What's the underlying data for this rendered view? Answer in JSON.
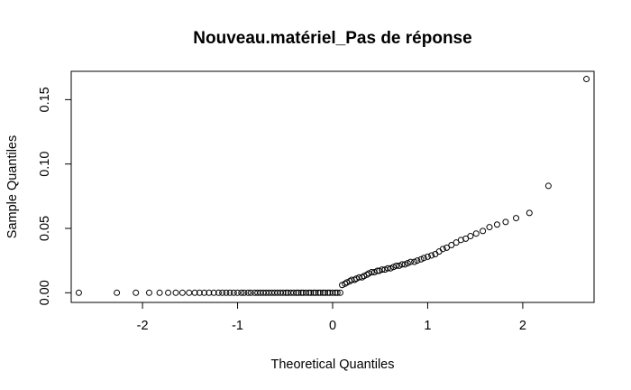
{
  "chart_data": {
    "type": "scatter",
    "title": "Nouveau.matériel_Pas de réponse",
    "xlabel": "Theoretical Quantiles",
    "ylabel": "Sample Quantiles",
    "xlim": [
      -2.75,
      2.75
    ],
    "ylim": [
      -0.0075,
      0.172
    ],
    "x_ticks": [
      -2,
      -1,
      0,
      1,
      2
    ],
    "x_tick_labels": [
      "-2",
      "-1",
      "0",
      "1",
      "2"
    ],
    "y_ticks": [
      0,
      0.05,
      0.1,
      0.15
    ],
    "y_tick_labels": [
      "0.00",
      "0.05",
      "0.10",
      "0.15"
    ],
    "grid": false,
    "series": [
      {
        "points": [
          [
            -2.67,
            0.0
          ],
          [
            -2.27,
            0.0
          ],
          [
            -2.07,
            0.0
          ],
          [
            -1.93,
            0.0
          ],
          [
            -1.82,
            0.0
          ],
          [
            -1.73,
            0.0
          ],
          [
            -1.65,
            0.0
          ],
          [
            -1.58,
            0.0
          ],
          [
            -1.51,
            0.0
          ],
          [
            -1.45,
            0.0
          ],
          [
            -1.4,
            0.0
          ],
          [
            -1.35,
            0.0
          ],
          [
            -1.3,
            0.0
          ],
          [
            -1.25,
            0.0
          ],
          [
            -1.2,
            0.0
          ],
          [
            -1.16,
            0.0
          ],
          [
            -1.12,
            0.0
          ],
          [
            -1.08,
            0.0
          ],
          [
            -1.04,
            0.0
          ],
          [
            -1.0,
            0.0
          ],
          [
            -0.96,
            0.0
          ],
          [
            -0.93,
            0.0
          ],
          [
            -0.89,
            0.0
          ],
          [
            -0.86,
            0.0
          ],
          [
            -0.82,
            0.0
          ],
          [
            -0.79,
            0.0
          ],
          [
            -0.76,
            0.0
          ],
          [
            -0.73,
            0.0
          ],
          [
            -0.7,
            0.0
          ],
          [
            -0.67,
            0.0
          ],
          [
            -0.64,
            0.0
          ],
          [
            -0.61,
            0.0
          ],
          [
            -0.58,
            0.0
          ],
          [
            -0.55,
            0.0
          ],
          [
            -0.52,
            0.0
          ],
          [
            -0.49,
            0.0
          ],
          [
            -0.47,
            0.0
          ],
          [
            -0.44,
            0.0
          ],
          [
            -0.41,
            0.0
          ],
          [
            -0.38,
            0.0
          ],
          [
            -0.36,
            0.0
          ],
          [
            -0.33,
            0.0
          ],
          [
            -0.31,
            0.0
          ],
          [
            -0.28,
            0.0
          ],
          [
            -0.25,
            0.0
          ],
          [
            -0.23,
            0.0
          ],
          [
            -0.2,
            0.0
          ],
          [
            -0.18,
            0.0
          ],
          [
            -0.15,
            0.0
          ],
          [
            -0.13,
            0.0
          ],
          [
            -0.1,
            0.0
          ],
          [
            -0.08,
            0.0
          ],
          [
            -0.05,
            0.0
          ],
          [
            -0.03,
            0.0
          ],
          [
            0.0,
            0.0
          ],
          [
            0.03,
            0.0
          ],
          [
            0.05,
            0.0
          ],
          [
            0.08,
            0.0
          ],
          [
            0.1,
            0.006
          ],
          [
            0.13,
            0.007
          ],
          [
            0.15,
            0.008
          ],
          [
            0.18,
            0.009
          ],
          [
            0.2,
            0.01
          ],
          [
            0.23,
            0.01
          ],
          [
            0.25,
            0.011
          ],
          [
            0.28,
            0.012
          ],
          [
            0.31,
            0.012
          ],
          [
            0.33,
            0.013
          ],
          [
            0.36,
            0.014
          ],
          [
            0.38,
            0.015
          ],
          [
            0.41,
            0.016
          ],
          [
            0.44,
            0.016
          ],
          [
            0.47,
            0.017
          ],
          [
            0.49,
            0.017
          ],
          [
            0.52,
            0.018
          ],
          [
            0.55,
            0.018
          ],
          [
            0.58,
            0.019
          ],
          [
            0.61,
            0.019
          ],
          [
            0.64,
            0.02
          ],
          [
            0.67,
            0.021
          ],
          [
            0.7,
            0.021
          ],
          [
            0.73,
            0.022
          ],
          [
            0.76,
            0.022
          ],
          [
            0.79,
            0.023
          ],
          [
            0.82,
            0.024
          ],
          [
            0.86,
            0.024
          ],
          [
            0.89,
            0.025
          ],
          [
            0.93,
            0.026
          ],
          [
            0.96,
            0.027
          ],
          [
            1.0,
            0.028
          ],
          [
            1.04,
            0.029
          ],
          [
            1.08,
            0.03
          ],
          [
            1.12,
            0.032
          ],
          [
            1.16,
            0.034
          ],
          [
            1.2,
            0.035
          ],
          [
            1.25,
            0.037
          ],
          [
            1.3,
            0.039
          ],
          [
            1.35,
            0.041
          ],
          [
            1.4,
            0.042
          ],
          [
            1.45,
            0.044
          ],
          [
            1.51,
            0.046
          ],
          [
            1.58,
            0.048
          ],
          [
            1.65,
            0.051
          ],
          [
            1.73,
            0.053
          ],
          [
            1.82,
            0.055
          ],
          [
            1.93,
            0.058
          ],
          [
            2.07,
            0.062
          ],
          [
            2.27,
            0.083
          ],
          [
            2.67,
            0.166
          ]
        ]
      }
    ]
  }
}
